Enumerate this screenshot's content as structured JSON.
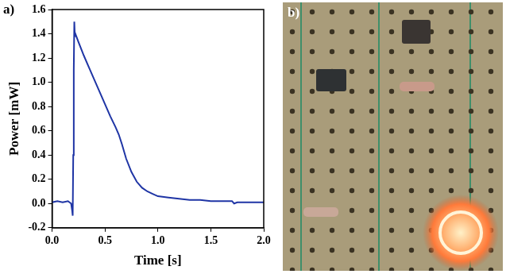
{
  "chart_data": {
    "type": "line",
    "panel": "a)",
    "x_label": "Time [s]",
    "y_label": "Power [mW]",
    "x": [
      0.0,
      0.05,
      0.1,
      0.15,
      0.18,
      0.19,
      0.195,
      0.2,
      0.205,
      0.21,
      0.215,
      0.22,
      0.25,
      0.3,
      0.35,
      0.4,
      0.45,
      0.5,
      0.55,
      0.6,
      0.63,
      0.66,
      0.7,
      0.75,
      0.8,
      0.85,
      0.9,
      0.95,
      1.0,
      1.1,
      1.2,
      1.3,
      1.4,
      1.5,
      1.6,
      1.7,
      1.72,
      1.75,
      1.8,
      1.9,
      2.0
    ],
    "values": [
      0.01,
      0.02,
      0.01,
      0.02,
      0.0,
      -0.06,
      -0.1,
      0.4,
      1.1,
      1.5,
      1.38,
      1.4,
      1.33,
      1.22,
      1.12,
      1.02,
      0.92,
      0.82,
      0.72,
      0.63,
      0.57,
      0.49,
      0.37,
      0.26,
      0.18,
      0.13,
      0.1,
      0.08,
      0.06,
      0.05,
      0.04,
      0.03,
      0.03,
      0.02,
      0.02,
      0.02,
      0.0,
      0.01,
      0.01,
      0.01,
      0.01
    ],
    "color": "#1f35a5",
    "marker": "none",
    "line_style": "solid",
    "grid": false,
    "xlim": [
      0.0,
      2.0
    ],
    "xticks": [
      {
        "value": 0,
        "label": "0.0"
      },
      0.5,
      {
        "value": 1,
        "label": "1.0"
      },
      1.5,
      {
        "value": 2,
        "label": "2.0"
      }
    ],
    "ylim": [
      -0.2,
      1.6
    ],
    "yticks": [
      -0.2,
      {
        "value": 0,
        "label": "0.0"
      },
      0.2,
      0.4,
      0.6,
      0.8,
      {
        "value": 1,
        "label": "1.0"
      },
      1.2,
      1.4,
      1.6
    ]
  },
  "photo": {
    "panel": "b)"
  }
}
